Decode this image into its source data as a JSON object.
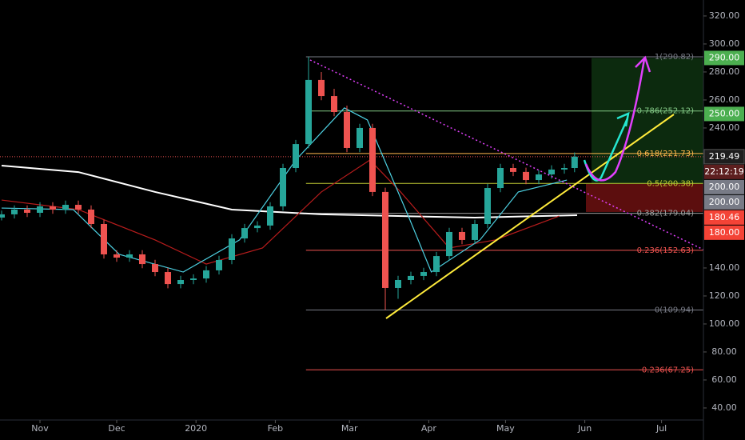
{
  "chart_data": {
    "type": "candlestick",
    "xlim": [
      -15.625,
      259.375
    ],
    "xticks": [
      {
        "value": 0,
        "label": "Nov"
      },
      {
        "value": 30,
        "label": "Dec"
      },
      {
        "value": 61,
        "label": "2020"
      },
      {
        "value": 92,
        "label": "Feb"
      },
      {
        "value": 121,
        "label": "Mar"
      },
      {
        "value": 152,
        "label": "Apr"
      },
      {
        "value": 182,
        "label": "May"
      },
      {
        "value": 213,
        "label": "Jun"
      },
      {
        "value": 243,
        "label": "Jul"
      }
    ],
    "ylim": [
      31.4,
      331.4
    ],
    "yticks": [
      {
        "value": 40,
        "label": "40.00"
      },
      {
        "value": 60,
        "label": "60.00"
      },
      {
        "value": 80,
        "label": "80.00"
      },
      {
        "value": 100,
        "label": "100.00"
      },
      {
        "value": 120,
        "label": "120.00"
      },
      {
        "value": 140,
        "label": "140.00"
      },
      {
        "value": 240,
        "label": "240.00"
      },
      {
        "value": 260,
        "label": "260.00"
      },
      {
        "value": 280,
        "label": "280.00"
      },
      {
        "value": 300,
        "label": "300.00"
      },
      {
        "value": 320,
        "label": "320.00"
      }
    ],
    "up_color": "#26a69a",
    "down_color": "#ef5350",
    "x": [
      -15,
      -10,
      -5,
      0,
      5,
      10,
      15,
      20,
      25,
      30,
      35,
      40,
      45,
      50,
      55,
      60,
      65,
      70,
      75,
      80,
      85,
      90,
      95,
      100,
      105,
      110,
      115,
      120,
      125,
      130,
      135,
      140,
      145,
      150,
      155,
      160,
      165,
      170,
      175,
      180,
      185,
      190,
      195,
      200,
      205,
      209
    ],
    "candles": [
      [
        176,
        181,
        174,
        178.3
      ],
      [
        178.3,
        184.7,
        175.3,
        181.7
      ],
      [
        181.7,
        184.7,
        176.4,
        179.4
      ],
      [
        179.4,
        187,
        176.4,
        184.0
      ],
      [
        184.0,
        187,
        178.7,
        181.7
      ],
      [
        181.7,
        188.1,
        178.7,
        185.1
      ],
      [
        185.1,
        188.1,
        178.7,
        181.7
      ],
      [
        181.7,
        184.7,
        168.4,
        171.4
      ],
      [
        171.4,
        174.4,
        146.7,
        149.7
      ],
      [
        149.7,
        152.7,
        144.4,
        147.4
      ],
      [
        147.4,
        152.7,
        144.4,
        149.7
      ],
      [
        149.7,
        152.7,
        139.8,
        142.8
      ],
      [
        142.8,
        145.8,
        134.1,
        137.1
      ],
      [
        137.1,
        140.1,
        125.5,
        128.5
      ],
      [
        128.5,
        134.4,
        125.5,
        131.4
      ],
      [
        131.4,
        135.5,
        128.4,
        132.5
      ],
      [
        132.5,
        141.3,
        129.5,
        138.3
      ],
      [
        138.3,
        148.7,
        135.3,
        145.7
      ],
      [
        145.7,
        164.1,
        142.7,
        161.1
      ],
      [
        161.1,
        171.5,
        158.1,
        168.5
      ],
      [
        168.5,
        173.3,
        165.5,
        170.3
      ],
      [
        170.3,
        187.0,
        167.3,
        184.0
      ],
      [
        184.0,
        214.4,
        181.0,
        211.4
      ],
      [
        211.4,
        231.5,
        208.4,
        228.5
      ],
      [
        228.5,
        290.8,
        225.5,
        274.3
      ],
      [
        274.3,
        280,
        259.8,
        262.8
      ],
      [
        262.8,
        268,
        248.4,
        251.4
      ],
      [
        251.4,
        256,
        222.7,
        225.7
      ],
      [
        225.7,
        243.0,
        222.7,
        240.0
      ],
      [
        240.0,
        243.0,
        191.3,
        194.3
      ],
      [
        194.3,
        197.3,
        109.94,
        125.7
      ],
      [
        125.7,
        134.4,
        118,
        131.4
      ],
      [
        131.4,
        137.3,
        128.3,
        134.3
      ],
      [
        134.3,
        140.1,
        131.3,
        137.1
      ],
      [
        137.1,
        151.5,
        134.1,
        148.5
      ],
      [
        148.5,
        168.7,
        145.5,
        165.7
      ],
      [
        165.7,
        168.7,
        157.0,
        160.0
      ],
      [
        160.0,
        174.4,
        157.0,
        171.4
      ],
      [
        171.4,
        200.1,
        168.4,
        197.1
      ],
      [
        197.1,
        214.4,
        194.1,
        211.4
      ],
      [
        211.4,
        214.4,
        205.6,
        208.6
      ],
      [
        208.6,
        211.6,
        199.8,
        202.8
      ],
      [
        202.8,
        209.8,
        199.8,
        206.8
      ],
      [
        206.8,
        213.3,
        203.8,
        210.3
      ],
      [
        210.3,
        214.4,
        207.3,
        211.4
      ],
      [
        211.4,
        222.5,
        208.4,
        219.49
      ]
    ],
    "lines": [
      {
        "color": "#ffffff",
        "x": [
          -15,
          15,
          45,
          75,
          110,
          140,
          170,
          210
        ],
        "values": [
          213.1,
          208.5,
          194.3,
          181.7,
          178.3,
          177.1,
          176.0,
          177.7
        ]
      },
      {
        "color": "#b71c1c",
        "x": [
          -15,
          15,
          45,
          65,
          87,
          110,
          129,
          141,
          160,
          178,
          203
        ],
        "values": [
          188.5,
          181.7,
          160.0,
          142.8,
          154.3,
          194.3,
          217.1,
          194.3,
          154.3,
          160.0,
          177.1
        ]
      },
      {
        "color": "#4dd0e1",
        "x": [
          -15,
          13,
          31,
          56,
          78,
          100,
          119,
          128,
          144,
          153,
          172,
          187,
          206
        ],
        "values": [
          182.8,
          181.7,
          149.7,
          137.1,
          160.0,
          217.1,
          254.3,
          245.7,
          177.1,
          137.1,
          160.0,
          194.3,
          202.8
        ]
      }
    ],
    "last_price": 219.49,
    "fib_start": 104,
    "fib_levels": [
      {
        "value": 290.82,
        "label": "1(290.82)",
        "color": "#787b86"
      },
      {
        "value": 252.12,
        "label": "0.786(252.12)",
        "color": "#81c784"
      },
      {
        "value": 221.73,
        "label": "0.618(221.73)",
        "color": "#ffb74d"
      },
      {
        "value": 200.38,
        "label": "0.5(200.38)",
        "color": "#c0ca33"
      },
      {
        "value": 179.04,
        "label": "0.382(179.04)",
        "color": "#9e9e9e"
      },
      {
        "value": 152.63,
        "label": "0.236(152.63)",
        "color": "#ef5350"
      },
      {
        "value": 109.94,
        "label": "0(109.94)",
        "color": "#787b86"
      },
      {
        "value": 67.25,
        "label": "-0.236(67.25)",
        "color": "#ef5350"
      }
    ],
    "tags": [
      {
        "value": 290,
        "label": "290.00",
        "color": "#4caf50"
      },
      {
        "value": 250,
        "label": "250.00",
        "color": "#4caf50"
      },
      {
        "value": 219.49,
        "label": "219.49",
        "color": "#1e1e1e"
      },
      {
        "value": 200,
        "label": "200.00",
        "color": "#787b86"
      },
      {
        "value": 200,
        "label": "200.00",
        "color": "#787b86"
      },
      {
        "value": 180.46,
        "label": "180.46",
        "color": "#f44336"
      },
      {
        "value": 180,
        "label": "180.00",
        "color": "#f44336"
      }
    ],
    "countdown": "22:12:19"
  }
}
